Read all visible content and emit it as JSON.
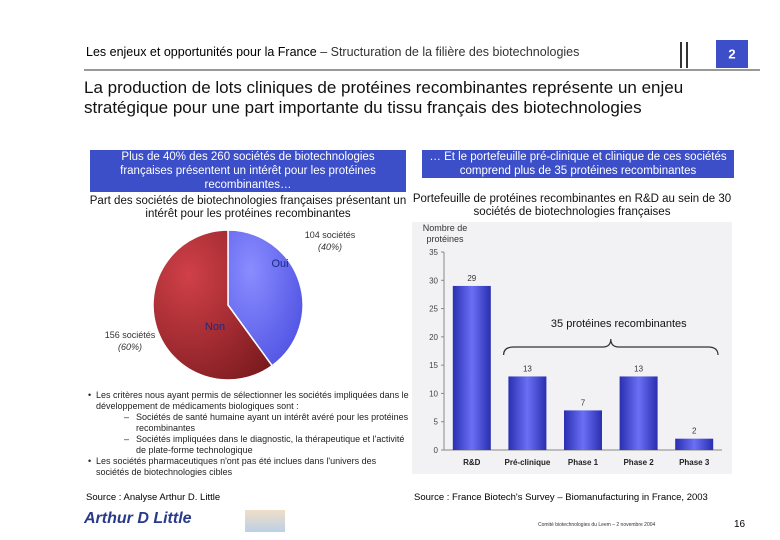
{
  "header": {
    "title": "Les enjeux et opportunités pour la France",
    "subtitle": "– Structuration de la filière des biotechnologies",
    "section": "2"
  },
  "title": "La production de lots cliniques de protéines recombinantes représente un enjeu stratégique pour une part importante du tissu français des biotechnologies",
  "left_box": "Plus de 40% des 260 sociétés de biotechnologies françaises présentent un intérêt pour les protéines recombinantes…",
  "right_box": "… Et le portefeuille pré-clinique et clinique de ces sociétés comprend plus de 35 protéines recombinantes",
  "chart_data": [
    {
      "type": "pie",
      "title": "Part des sociétés de biotechnologies françaises présentant un intérêt pour les protéines recombinantes",
      "categories": [
        "Oui",
        "Non"
      ],
      "values": [
        104,
        156
      ],
      "value_labels": [
        "104 sociétés",
        "156 sociétés"
      ],
      "percent_labels": [
        "(40%)",
        "(60%)"
      ],
      "colors": [
        "#4a4ee0",
        "#b02a30"
      ]
    },
    {
      "type": "bar",
      "title": "Portefeuille de protéines recombinantes en R&D au sein de 30 sociétés de biotechnologies françaises",
      "ylabel": "Nombre de protéines",
      "categories": [
        "R&D",
        "Pré-clinique",
        "Phase 1",
        "Phase 2",
        "Phase 3"
      ],
      "values": [
        29,
        13,
        7,
        13,
        2
      ],
      "color": "#3b40d0",
      "ylim": [
        0,
        35
      ],
      "yticks": [
        0,
        5,
        10,
        15,
        20,
        25,
        30,
        35
      ],
      "annotation": "35 protéines recombinantes"
    }
  ],
  "notes": [
    {
      "text": "Les critères nous ayant permis de sélectionner les sociétés impliquées dans le développement de médicaments biologiques sont :",
      "sub": [
        "Sociétés de santé humaine ayant un intérêt avéré pour les protéines recombinantes",
        "Sociétés impliquées dans le diagnostic, la thérapeutique et l'activité de plate-forme technologique"
      ]
    },
    {
      "text": "Les sociétés pharmaceutiques n'ont pas été inclues dans l'univers des sociétés de biotechnologies cibles"
    }
  ],
  "source_left": "Source : Analyse Arthur D. Little",
  "source_right": "Source : France Biotech's Survey – Biomanufacturing in France, 2003",
  "footer": {
    "logo": "Arthur D Little",
    "event": "Comité biotechnologies du Leem – 2 novembre 2004",
    "page": "16"
  }
}
